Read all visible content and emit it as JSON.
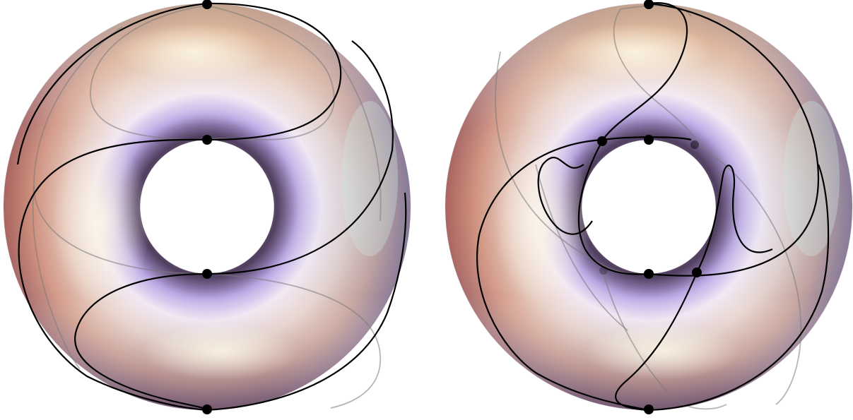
{
  "figure": {
    "panels": [
      {
        "id": "left-torus"
      },
      {
        "id": "right-torus"
      }
    ],
    "colors": {
      "torus_warm": "#c77c5f",
      "torus_lavender": "#c9b8f2",
      "torus_pale": "#f4ead8",
      "torus_deep": "#7a5a7e",
      "curve_front": "#000000",
      "curve_back": "#808080",
      "point": "#000000"
    }
  }
}
